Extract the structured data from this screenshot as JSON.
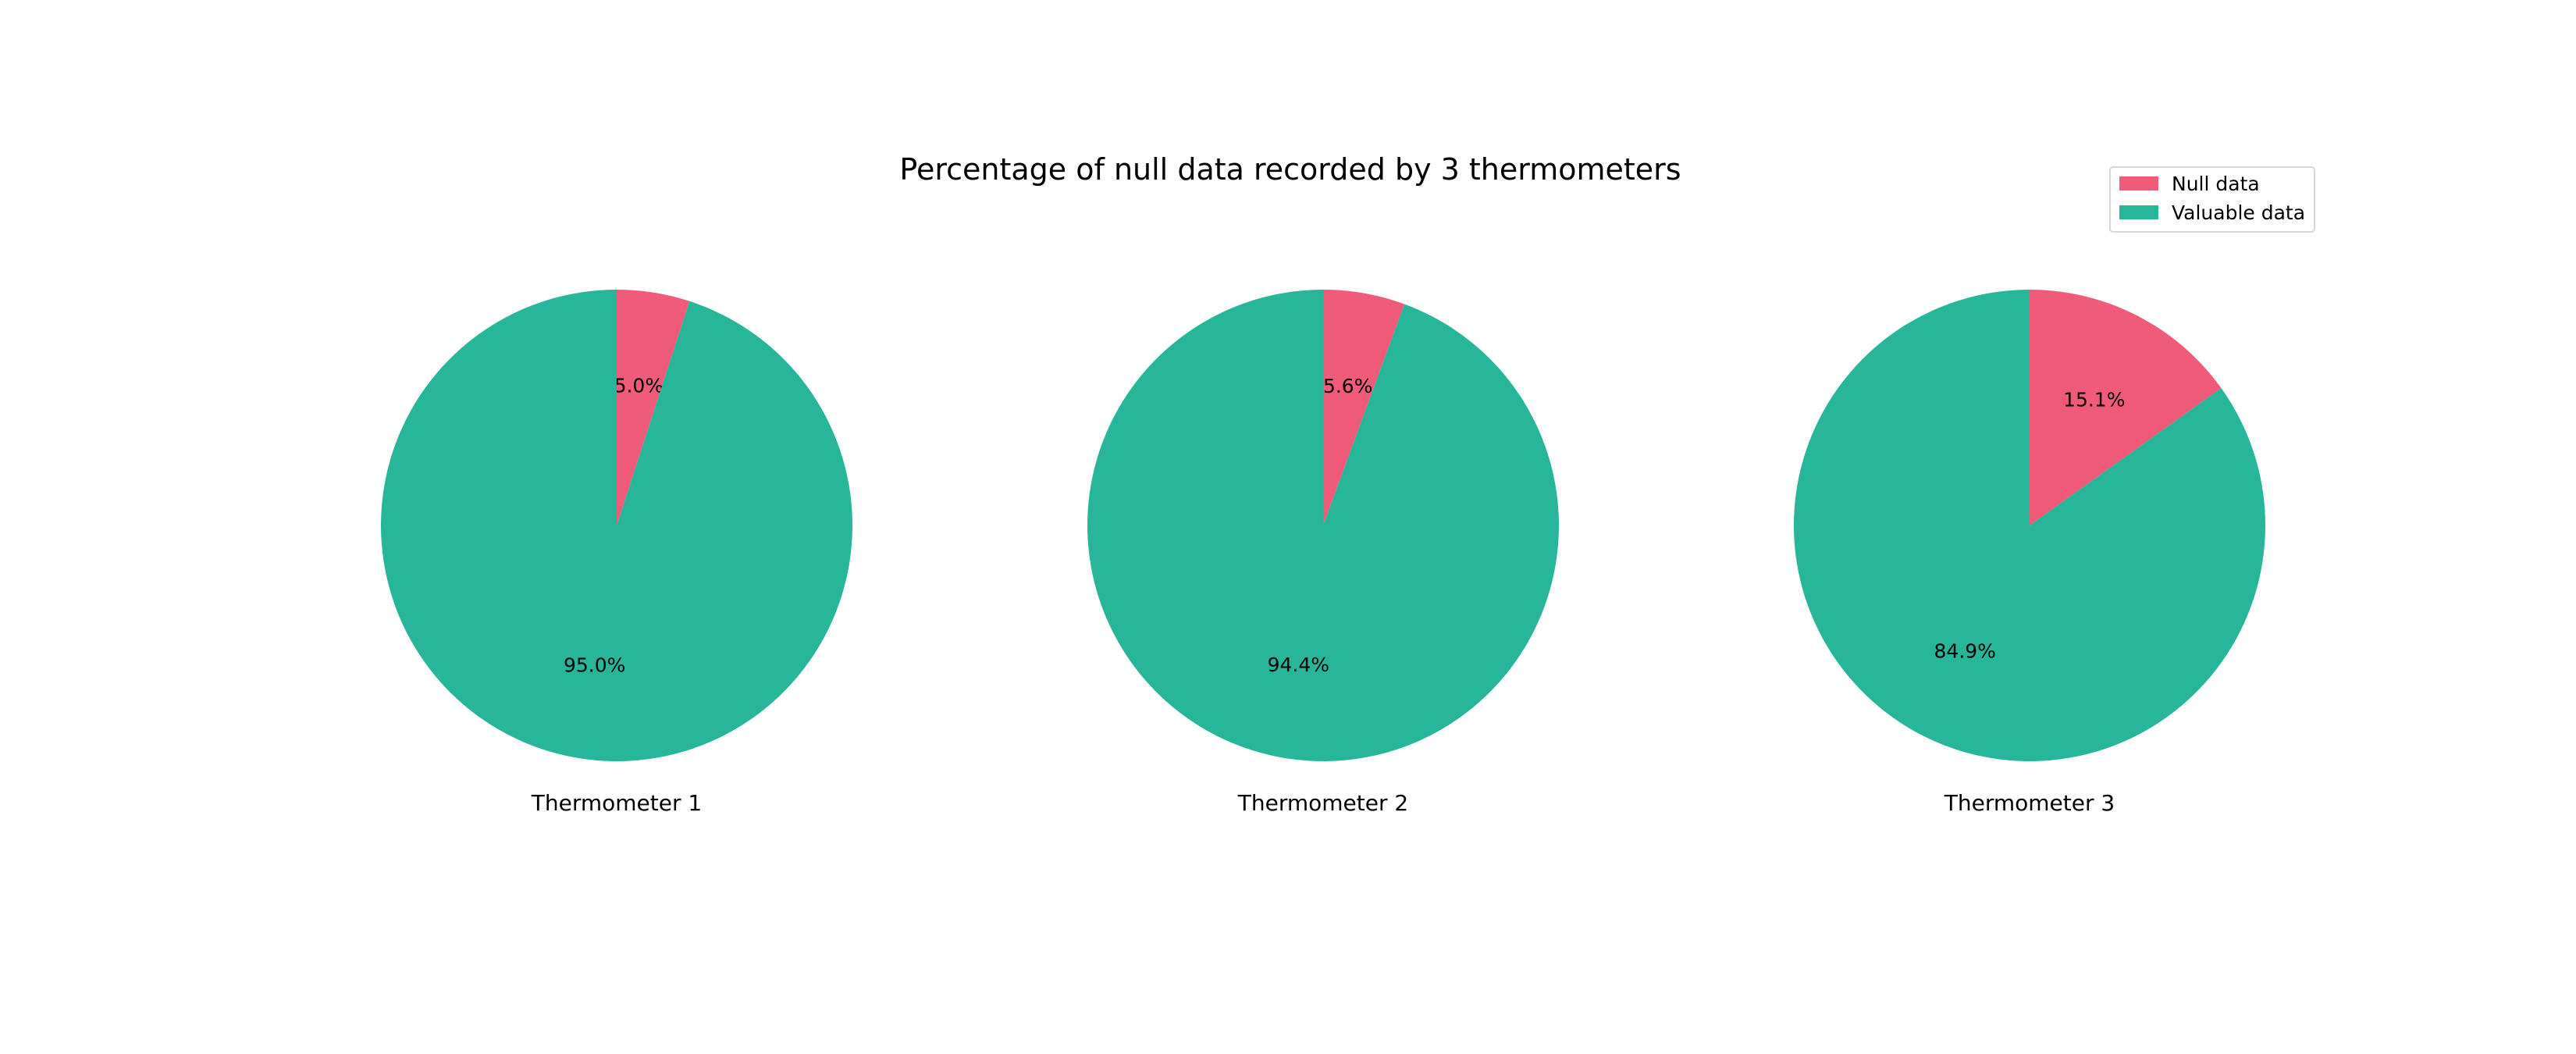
{
  "chart_data": {
    "type": "pie",
    "title": "Percentage of null data recorded by 3 thermometers",
    "legend": {
      "placement": "top-right",
      "entries": [
        "Null data",
        "Valuable data"
      ]
    },
    "colors": {
      "null": "#ef5b78",
      "valuable": "#27b699"
    },
    "pies": [
      {
        "label": "Thermometer 1",
        "slices": [
          {
            "name": "Null data",
            "value": 5.0,
            "pct_label": "5.0%"
          },
          {
            "name": "Valuable data",
            "value": 95.0,
            "pct_label": "95.0%"
          }
        ]
      },
      {
        "label": "Thermometer 2",
        "slices": [
          {
            "name": "Null data",
            "value": 5.6,
            "pct_label": "5.6%"
          },
          {
            "name": "Valuable data",
            "value": 94.4,
            "pct_label": "94.4%"
          }
        ]
      },
      {
        "label": "Thermometer 3",
        "slices": [
          {
            "name": "Null data",
            "value": 15.1,
            "pct_label": "15.1%"
          },
          {
            "name": "Valuable data",
            "value": 84.9,
            "pct_label": "84.9%"
          }
        ]
      }
    ],
    "start_angle_deg": 90,
    "direction": "clockwise"
  }
}
